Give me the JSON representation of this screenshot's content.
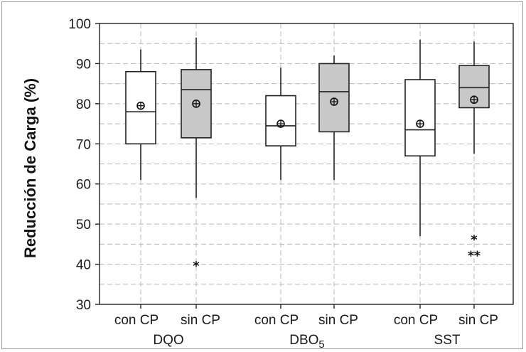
{
  "chart_data": {
    "type": "boxplot",
    "ylabel": "Reducción de Carga (%)",
    "ylim": [
      30,
      100
    ],
    "yticks": [
      30,
      40,
      50,
      60,
      70,
      80,
      90,
      100
    ],
    "grid": true,
    "groups": [
      {
        "label": "DQO",
        "label_sub": "",
        "boxes": [
          {
            "label": "con CP",
            "filled": false,
            "min": 61,
            "q1": 70,
            "median": 78,
            "q3": 88,
            "max": 93.5,
            "mean": 79.5,
            "outliers": []
          },
          {
            "label": "sin CP",
            "filled": true,
            "min": 56.5,
            "q1": 71.5,
            "median": 83.5,
            "q3": 88.5,
            "max": 96.5,
            "mean": 80,
            "outliers": [
              40.5
            ]
          }
        ]
      },
      {
        "label": "DBO",
        "label_sub": "5",
        "boxes": [
          {
            "label": "con CP",
            "filled": false,
            "min": 61,
            "q1": 69.5,
            "median": 74.5,
            "q3": 82,
            "max": 89,
            "mean": 75,
            "outliers": []
          },
          {
            "label": "sin CP",
            "filled": true,
            "min": 61,
            "q1": 73,
            "median": 83,
            "q3": 90,
            "max": 92,
            "mean": 80.5,
            "outliers": []
          }
        ]
      },
      {
        "label": "SST",
        "label_sub": "",
        "boxes": [
          {
            "label": "con CP",
            "filled": false,
            "min": 47,
            "q1": 67,
            "median": 73.5,
            "q3": 86,
            "max": 96,
            "mean": 75,
            "outliers": []
          },
          {
            "label": "sin CP",
            "filled": true,
            "min": 67.5,
            "q1": 79,
            "median": 84,
            "q3": 89.5,
            "max": 95.5,
            "mean": 81,
            "outliers": [
              47,
              43,
              43
            ]
          }
        ]
      }
    ]
  }
}
